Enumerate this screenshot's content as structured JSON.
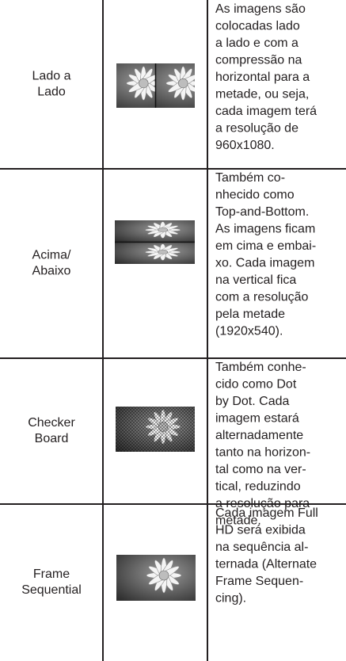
{
  "table": {
    "rows": [
      {
        "label": [
          "Lado a",
          "Lado"
        ],
        "description": [
          "As imagens são",
          "colocadas lado",
          "a lado e com a",
          "compressão na",
          "horizontal para a",
          "metade, ou seja,",
          "cada imagem terá",
          "a resolução de",
          "960x1080."
        ]
      },
      {
        "label": [
          "Acima/",
          "Abaixo"
        ],
        "description": [
          "Também co-",
          "nhecido como",
          "Top-and-Bottom.",
          "As imagens ficam",
          "em cima e embai-",
          "xo. Cada imagem",
          "na vertical fica",
          "com a resolução",
          "pela metade",
          "(1920x540)."
        ]
      },
      {
        "label": [
          "Checker",
          "Board"
        ],
        "description": [
          "Também conhe-",
          "cido como Dot",
          "by Dot. Cada",
          "imagem estará",
          "alternadamente",
          "tanto na horizon-",
          "tal como na ver-",
          "tical, reduzindo",
          "a resolução para",
          "metade."
        ]
      },
      {
        "label": [
          "Frame",
          "Sequential"
        ],
        "description": [
          "Cada imagem Full",
          "HD será exibida",
          "na sequência al-",
          "ternada (Alternate",
          "Frame Sequen-",
          "cing)."
        ]
      }
    ]
  }
}
